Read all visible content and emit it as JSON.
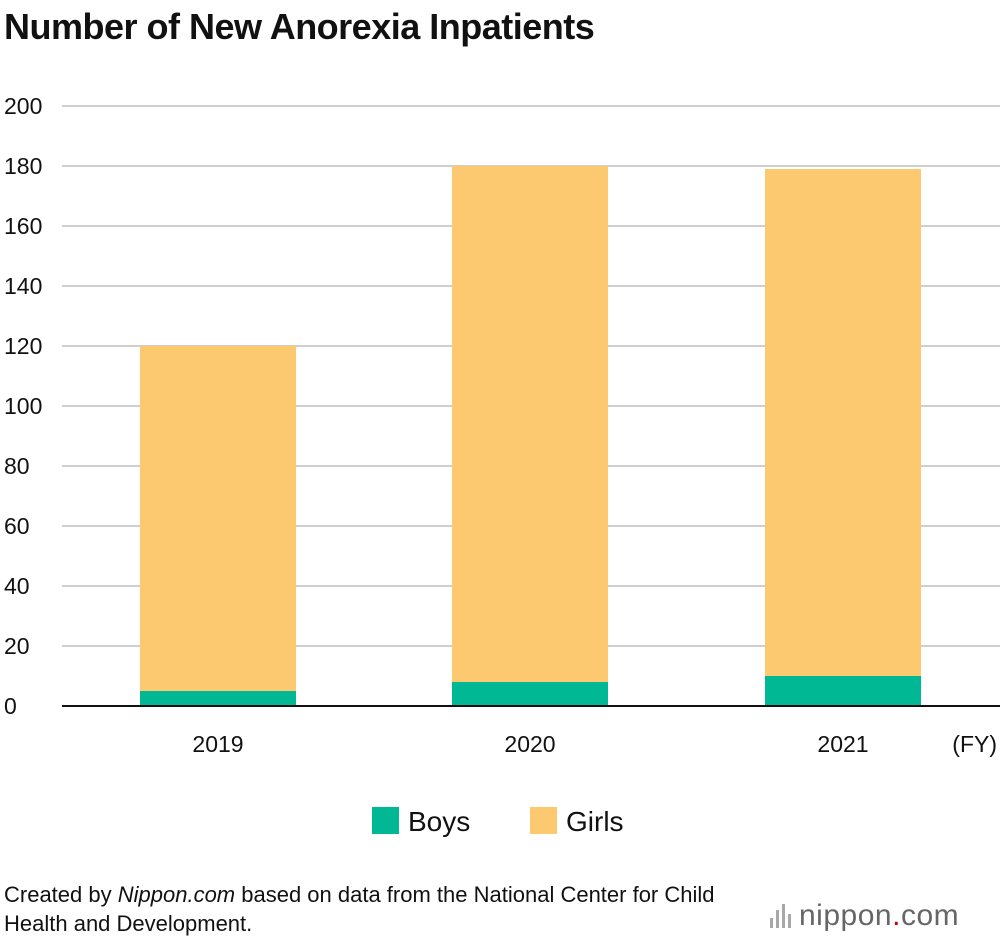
{
  "chart_data": {
    "type": "bar",
    "stacked": true,
    "title": "Number of New Anorexia Inpatients",
    "categories": [
      "2019",
      "2020",
      "2021"
    ],
    "x_unit_label": "(FY)",
    "series": [
      {
        "name": "Boys",
        "values": [
          5,
          8,
          10
        ],
        "color": "#00b894"
      },
      {
        "name": "Girls",
        "values": [
          115,
          172,
          169
        ],
        "color": "#fcc870"
      }
    ],
    "ylim": [
      0,
      200
    ],
    "yticks": [
      0,
      20,
      40,
      60,
      80,
      100,
      120,
      140,
      160,
      180,
      200
    ],
    "grid": true,
    "legend_position": "bottom-center"
  },
  "source": {
    "prefix": "Created by ",
    "site": "Nippon.com",
    "suffix": " based on data from the National Center for Child Health and Development."
  },
  "logo": {
    "name": "nippon",
    "dot": ".",
    "tld": "com"
  }
}
